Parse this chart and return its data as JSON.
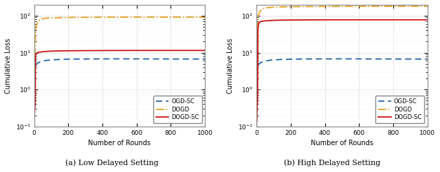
{
  "title_a": "(a) Low Delayed Setting",
  "title_b": "(b) High Delayed Setting",
  "xlabel": "Number of Rounds",
  "ylabel": "Cumulative Loss",
  "legend_labels": [
    "OGD-SC",
    "DOGD",
    "DOGD-SC"
  ],
  "colors": {
    "OGD-SC": "#2166AC",
    "DOGD": "#E8A020",
    "DOGD-SC": "#CC1111"
  },
  "low_delay": {
    "OGD_SC": {
      "x": [
        1,
        3,
        5,
        8,
        10,
        15,
        20,
        30,
        50,
        75,
        100,
        150,
        200,
        300,
        400,
        500,
        600,
        700,
        800,
        900,
        1000
      ],
      "y": [
        2.4,
        3.2,
        3.8,
        4.2,
        4.5,
        5.0,
        5.2,
        5.5,
        5.9,
        6.2,
        6.4,
        6.55,
        6.65,
        6.75,
        6.78,
        6.8,
        6.78,
        6.75,
        6.73,
        6.72,
        6.7
      ]
    },
    "DOGD": {
      "x": [
        1,
        3,
        5,
        8,
        10,
        15,
        20,
        25,
        30,
        40,
        50,
        75,
        100,
        150,
        200,
        300,
        400,
        500,
        600,
        700,
        800,
        900,
        1000
      ],
      "y": [
        0.13,
        3.0,
        12,
        30,
        42,
        58,
        67,
        72,
        76,
        81,
        84,
        87,
        88,
        89,
        90,
        91,
        91.5,
        92,
        92,
        92,
        92,
        92,
        92
      ]
    },
    "DOGD_SC": {
      "x": [
        1,
        2,
        3,
        4,
        5,
        6,
        8,
        10,
        15,
        20,
        30,
        50,
        75,
        100,
        150,
        200,
        300,
        400,
        500,
        600,
        700,
        800,
        900,
        1000
      ],
      "y": [
        0.13,
        0.2,
        0.27,
        0.32,
        0.35,
        0.38,
        8.5,
        9.2,
        9.8,
        10.0,
        10.3,
        10.6,
        10.85,
        11.0,
        11.15,
        11.25,
        11.35,
        11.42,
        11.45,
        11.48,
        11.5,
        11.5,
        11.5,
        11.5
      ]
    }
  },
  "high_delay": {
    "OGD_SC": {
      "x": [
        1,
        3,
        5,
        8,
        10,
        15,
        20,
        30,
        50,
        75,
        100,
        150,
        200,
        300,
        400,
        500,
        600,
        700,
        800,
        900,
        1000
      ],
      "y": [
        2.4,
        3.2,
        3.8,
        4.2,
        4.5,
        5.0,
        5.2,
        5.5,
        5.9,
        6.2,
        6.4,
        6.55,
        6.65,
        6.75,
        6.78,
        6.8,
        6.78,
        6.75,
        6.73,
        6.72,
        6.7
      ]
    },
    "DOGD": {
      "x": [
        1,
        3,
        5,
        8,
        10,
        15,
        20,
        25,
        30,
        40,
        50,
        75,
        100,
        150,
        200,
        250,
        300,
        400,
        500,
        600,
        700,
        800,
        900,
        1000
      ],
      "y": [
        0.13,
        8,
        40,
        80,
        98,
        118,
        132,
        142,
        150,
        158,
        163,
        168,
        172,
        175,
        177,
        178,
        179,
        180,
        181,
        181,
        182,
        182,
        182,
        182
      ]
    },
    "DOGD_SC": {
      "x": [
        1,
        2,
        3,
        4,
        5,
        6,
        8,
        10,
        15,
        20,
        30,
        50,
        75,
        100,
        150,
        200,
        300,
        400,
        500,
        600,
        700,
        800,
        900,
        1000
      ],
      "y": [
        0.13,
        0.2,
        0.27,
        0.35,
        0.42,
        0.5,
        40,
        55,
        65,
        68,
        71,
        73,
        74.5,
        75.5,
        76.5,
        77,
        77.5,
        78,
        78,
        78,
        78,
        78,
        78,
        78
      ]
    }
  }
}
